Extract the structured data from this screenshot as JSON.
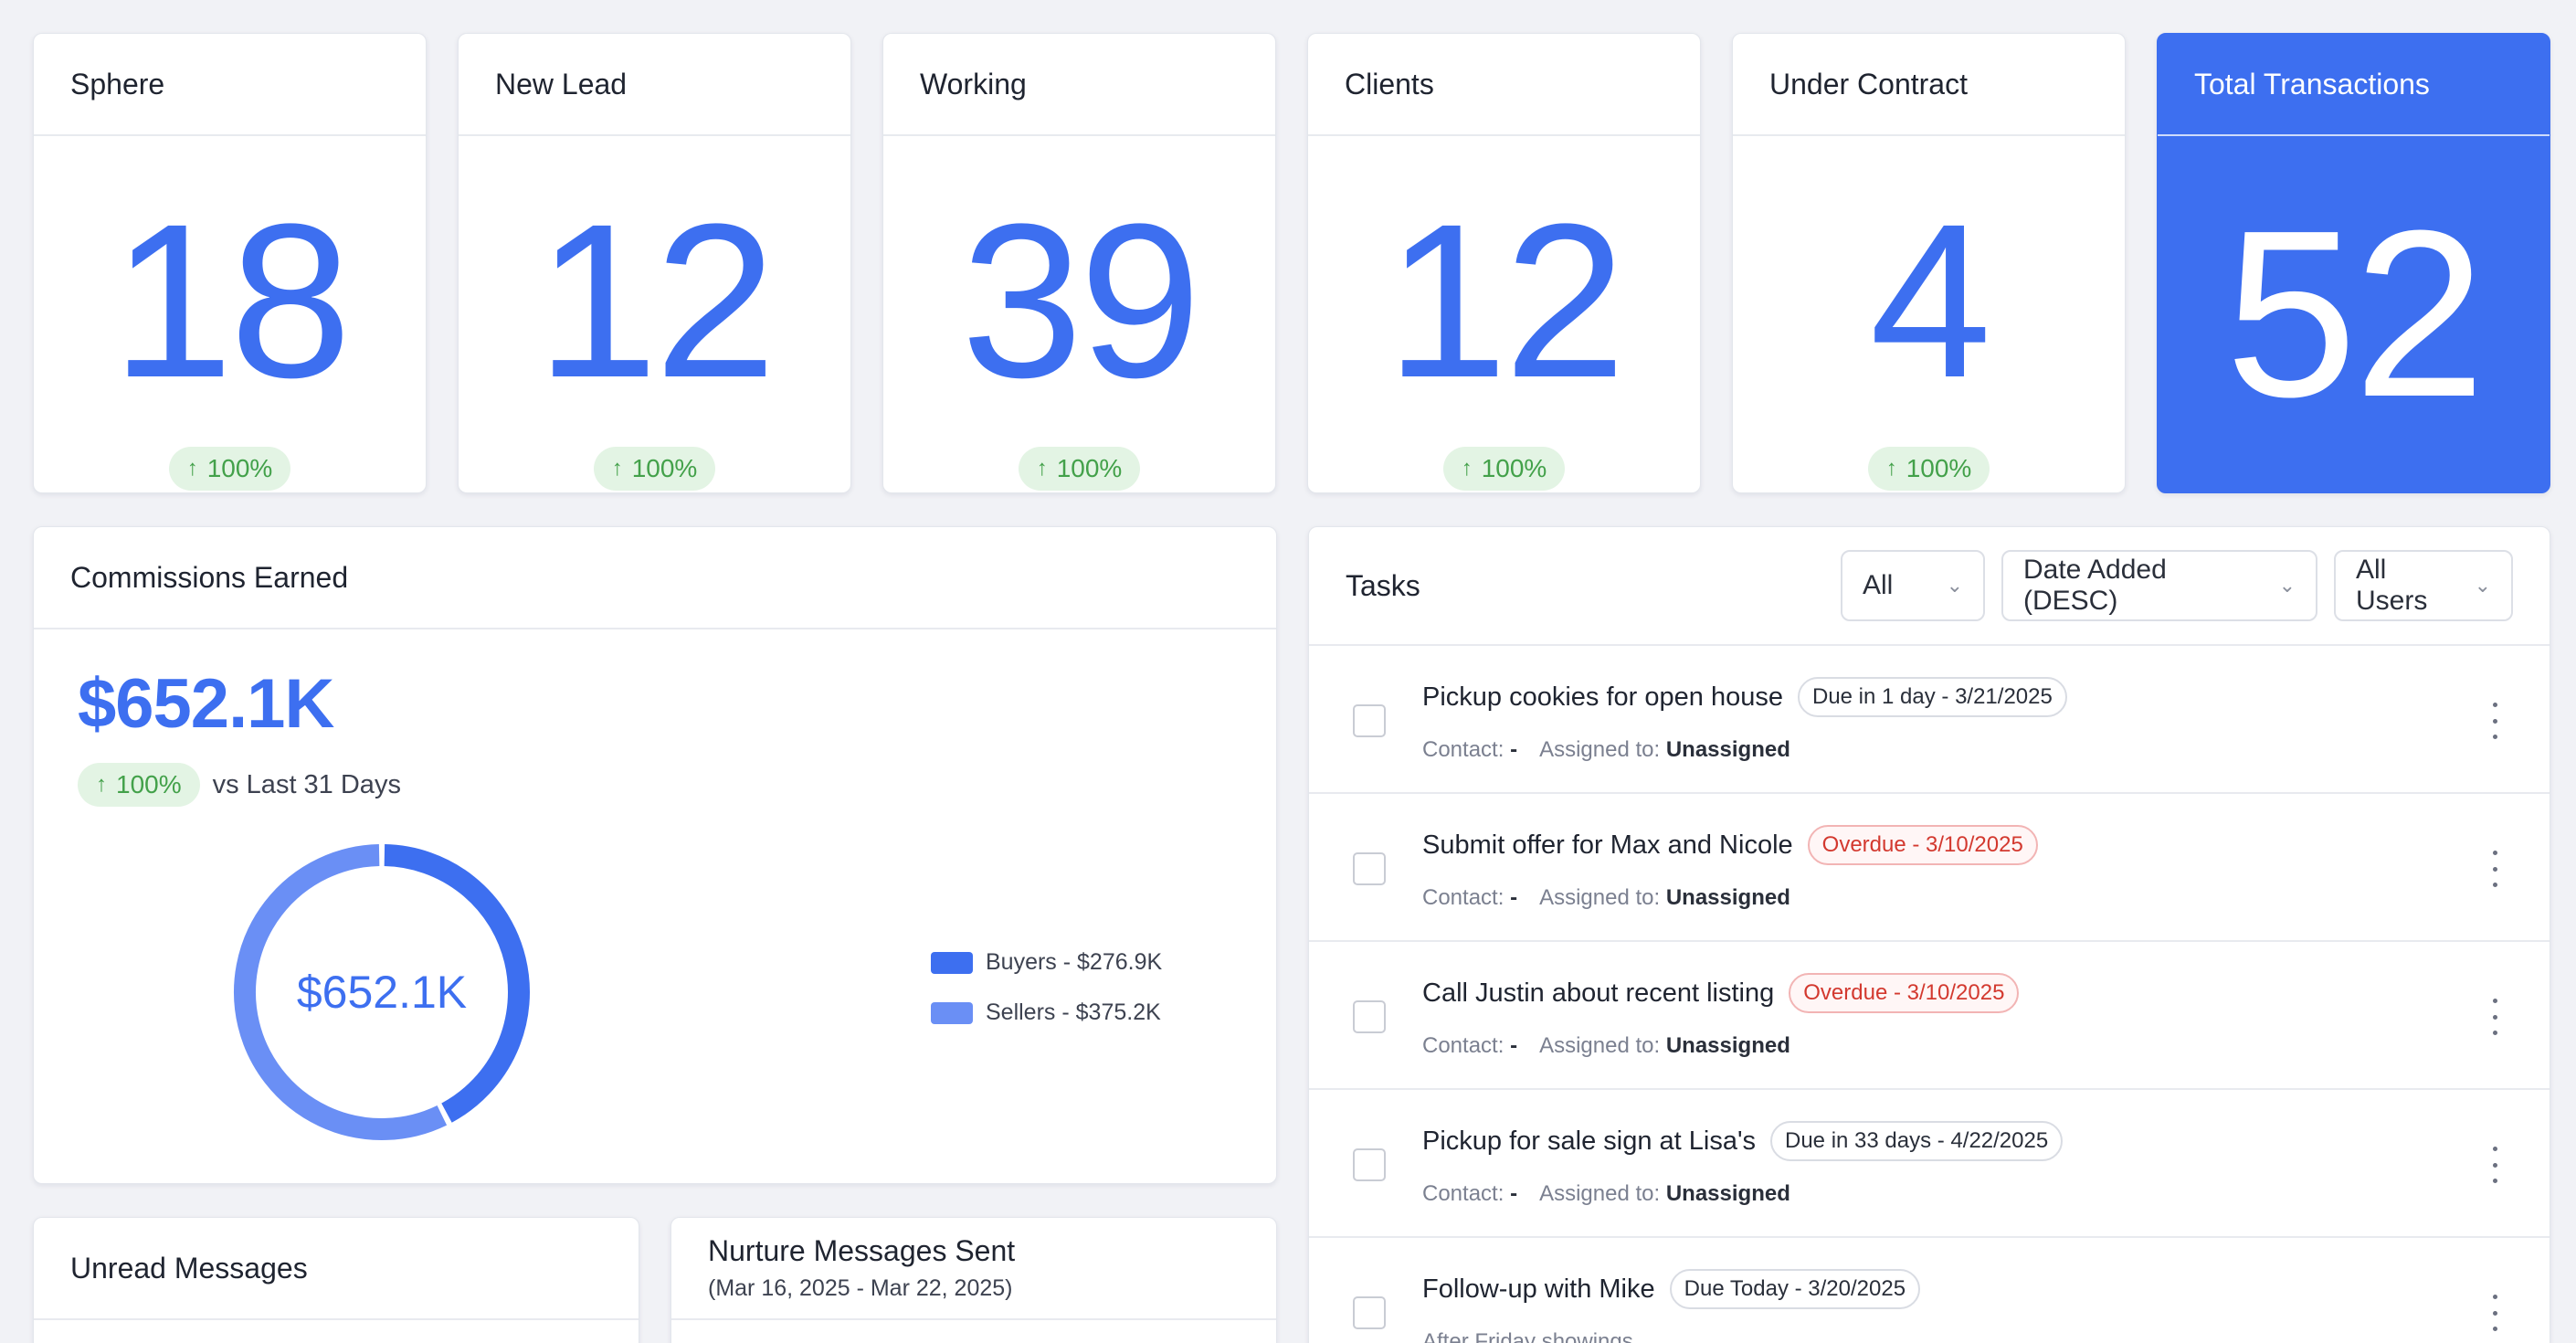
{
  "stats": [
    {
      "label": "Sphere",
      "value": "18",
      "change": "100%"
    },
    {
      "label": "New Lead",
      "value": "12",
      "change": "100%"
    },
    {
      "label": "Working",
      "value": "39",
      "change": "100%"
    },
    {
      "label": "Clients",
      "value": "12",
      "change": "100%"
    },
    {
      "label": "Under Contract",
      "value": "4",
      "change": "100%"
    },
    {
      "label": "Total Transactions",
      "value": "52"
    }
  ],
  "commissions": {
    "title": "Commissions Earned",
    "amount": "$652.1K",
    "change": "100%",
    "compare_label": "vs Last 31 Days",
    "donut_center": "$652.1K",
    "legend": [
      {
        "label": "Buyers - $276.9K",
        "color": "#3d6ff0",
        "value": 276.9
      },
      {
        "label": "Sellers - $375.2K",
        "color": "#6a8ff5",
        "value": 375.2
      }
    ]
  },
  "unread": {
    "title": "Unread Messages"
  },
  "nurture": {
    "title": "Nurture Messages Sent",
    "range": "(Mar 16, 2025 - Mar 22, 2025)"
  },
  "tasks": {
    "title": "Tasks",
    "filter_status": "All",
    "filter_sort": "Date Added (DESC)",
    "filter_users": "All Users",
    "contact_label": "Contact:",
    "contact_value": "-",
    "assigned_label": "Assigned to:",
    "items": [
      {
        "title": "Pickup cookies for open house",
        "due": "Due in 1 day - 3/21/2025",
        "assigned": "Unassigned"
      },
      {
        "title": "Submit offer for Max and Nicole",
        "due": "Overdue - 3/10/2025",
        "assigned": "Unassigned"
      },
      {
        "title": "Call Justin about recent listing",
        "due": "Overdue - 3/10/2025",
        "assigned": "Unassigned"
      },
      {
        "title": "Pickup for sale sign at Lisa's",
        "due": "Due in 33 days - 4/22/2025",
        "assigned": "Unassigned"
      },
      {
        "title": "Follow-up with Mike",
        "due": "Due Today - 3/20/2025",
        "note": "After Friday showings"
      }
    ]
  },
  "icons": {
    "up_arrow": "arrow-up-icon",
    "chevron": "chevron-down-icon",
    "more": "more-vertical-icon"
  },
  "colors": {
    "accent": "#3d6ff0",
    "positive_bg": "#e3f4e4",
    "positive_text": "#43a14a",
    "overdue": "#d3392f"
  }
}
